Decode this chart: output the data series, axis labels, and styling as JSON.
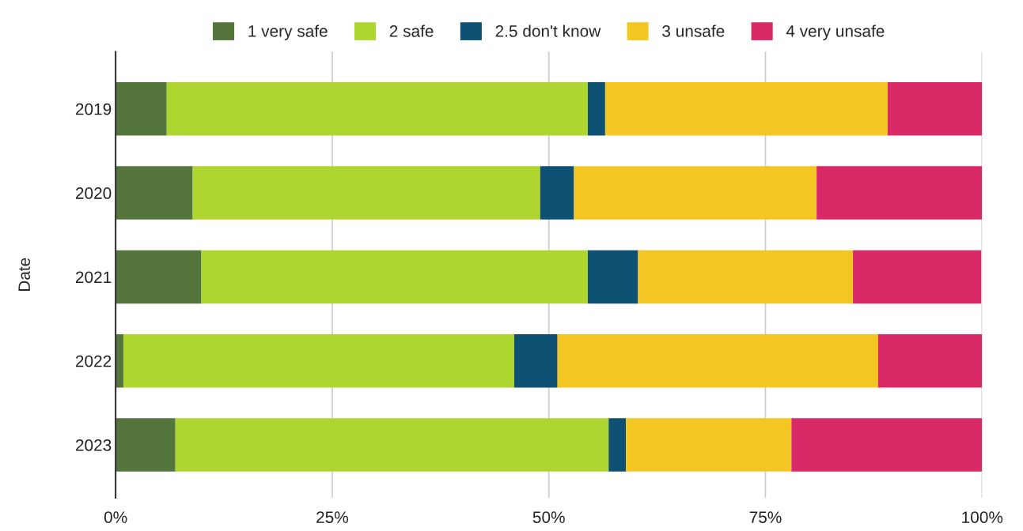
{
  "chart_data": {
    "type": "bar",
    "orientation": "horizontal",
    "stacked": true,
    "ylabel": "Date",
    "categories": [
      "2019",
      "2020",
      "2021",
      "2022",
      "2023"
    ],
    "series": [
      {
        "name": "1 very safe",
        "color": "#54763c",
        "values": [
          5.9,
          8.9,
          9.9,
          0.9,
          6.9
        ]
      },
      {
        "name": "2 safe",
        "color": "#afd630",
        "values": [
          48.6,
          40.1,
          44.6,
          45.1,
          50.0
        ]
      },
      {
        "name": "2.5 don't know",
        "color": "#0f5173",
        "values": [
          2.0,
          3.9,
          5.8,
          5.0,
          2.0
        ]
      },
      {
        "name": "3 unsafe",
        "color": "#f4c623",
        "values": [
          32.6,
          28.0,
          24.8,
          37.0,
          19.1
        ]
      },
      {
        "name": "4 very unsafe",
        "color": "#d92a67",
        "values": [
          10.9,
          19.1,
          14.8,
          12.0,
          22.0
        ]
      }
    ],
    "xlim": [
      0,
      100
    ],
    "xticks": [
      {
        "value": 0,
        "label": "0%"
      },
      {
        "value": 25,
        "label": "25%"
      },
      {
        "value": 50,
        "label": "50%"
      },
      {
        "value": 75,
        "label": "75%"
      },
      {
        "value": 100,
        "label": "100%"
      }
    ],
    "grid": "x",
    "legend": "top"
  }
}
